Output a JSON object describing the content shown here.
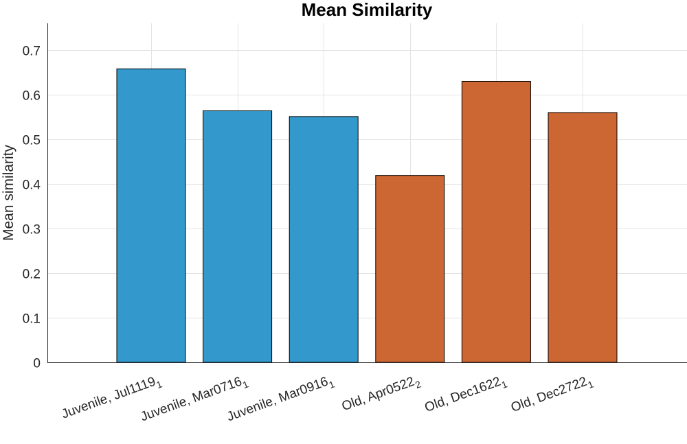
{
  "chart_data": {
    "type": "bar",
    "title": "Mean Similarity",
    "xlabel": "",
    "ylabel": "Mean similarity",
    "ylim": [
      0,
      0.76
    ],
    "yticks": [
      "0",
      "0.1",
      "0.2",
      "0.3",
      "0.4",
      "0.5",
      "0.6",
      "0.7"
    ],
    "grid": true,
    "categories": [
      {
        "label": "Juvenile, Jul1119",
        "sub": "1"
      },
      {
        "label": "Juvenile, Mar0716",
        "sub": "1"
      },
      {
        "label": "Juvenile, Mar0916",
        "sub": "1"
      },
      {
        "label": "Old, Apr0522",
        "sub": "2"
      },
      {
        "label": "Old, Dec1622",
        "sub": "1"
      },
      {
        "label": "Old, Dec2722",
        "sub": "1"
      }
    ],
    "values": [
      0.658,
      0.564,
      0.551,
      0.419,
      0.63,
      0.56
    ],
    "colors": [
      "#3399cc",
      "#3399cc",
      "#3399cc",
      "#cc6633",
      "#cc6633",
      "#cc6633"
    ]
  }
}
